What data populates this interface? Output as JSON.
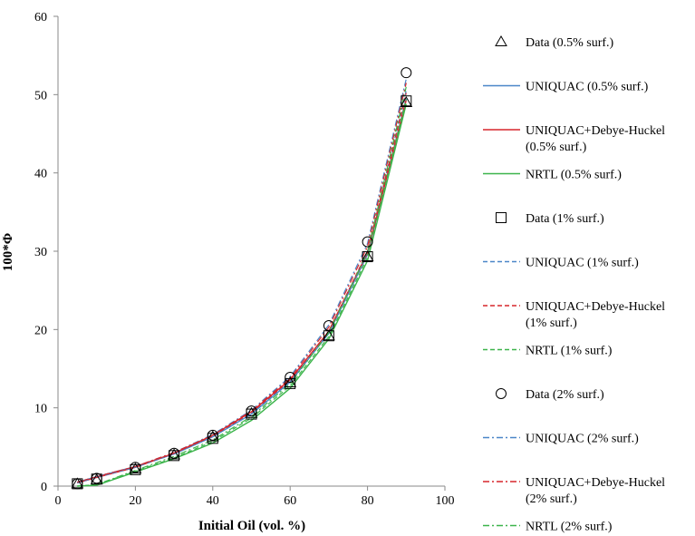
{
  "chart_data": {
    "type": "line",
    "title": "",
    "xlabel": "Initial Oil (vol. %)",
    "ylabel": "100*Φ",
    "xlim": [
      0,
      100
    ],
    "ylim": [
      0,
      60
    ],
    "x_ticks": [
      "0",
      "20",
      "40",
      "60",
      "80",
      "100"
    ],
    "y_ticks": [
      "0",
      "10",
      "20",
      "30",
      "40",
      "50",
      "60"
    ],
    "grid": false,
    "legend_position": "right",
    "x": [
      5,
      10,
      20,
      30,
      40,
      50,
      60,
      70,
      80,
      90
    ],
    "series": [
      {
        "name": "Data (0.5% surf.)",
        "kind": "marker",
        "marker": "triangle",
        "color": "#000000",
        "values": [
          0.3,
          0.8,
          2.2,
          4.0,
          6.3,
          9.3,
          13.2,
          19.2,
          29.3,
          49.0
        ]
      },
      {
        "name": "UNIQUAC (0.5% surf.)",
        "kind": "line",
        "dash": "solid",
        "color": "#4a86c8",
        "values": [
          0.5,
          1.2,
          2.5,
          4.1,
          6.3,
          9.2,
          13.3,
          19.5,
          29.6,
          49.5
        ]
      },
      {
        "name": "UNIQUAC+Debye-Huckel (0.5% surf.)",
        "kind": "line",
        "dash": "solid",
        "color": "#d7262b",
        "values": [
          0.4,
          1.1,
          2.4,
          4.2,
          6.5,
          9.5,
          13.6,
          19.8,
          29.8,
          49.3
        ]
      },
      {
        "name": "NRTL (0.5% surf.)",
        "kind": "line",
        "dash": "solid",
        "color": "#3cb44b",
        "values": [
          0.0,
          0.1,
          1.8,
          3.5,
          5.5,
          8.4,
          12.5,
          18.8,
          28.8,
          48.8
        ]
      },
      {
        "name": "Data (1% surf.)",
        "kind": "marker",
        "marker": "square",
        "color": "#000000",
        "values": [
          0.3,
          0.9,
          2.1,
          3.9,
          6.1,
          9.2,
          13.1,
          19.2,
          29.3,
          49.2
        ]
      },
      {
        "name": "UNIQUAC (1% surf.)",
        "kind": "line",
        "dash": "dashed",
        "color": "#4a86c8",
        "values": [
          0.4,
          1.1,
          2.4,
          4.1,
          6.3,
          9.3,
          13.4,
          19.7,
          29.9,
          50.5
        ]
      },
      {
        "name": "UNIQUAC+Debye-Huckel (1% surf.)",
        "kind": "line",
        "dash": "dashed",
        "color": "#d7262b",
        "values": [
          0.5,
          1.2,
          2.5,
          4.2,
          6.4,
          9.4,
          13.5,
          19.8,
          30.0,
          50.2
        ]
      },
      {
        "name": "NRTL (1% surf.)",
        "kind": "line",
        "dash": "dashed",
        "color": "#3cb44b",
        "values": [
          0.0,
          0.2,
          1.9,
          3.6,
          5.7,
          8.7,
          12.8,
          19.1,
          29.2,
          49.4
        ]
      },
      {
        "name": "Data (2% surf.)",
        "kind": "marker",
        "marker": "circle",
        "color": "#000000",
        "values": [
          0.3,
          1.0,
          2.4,
          4.2,
          6.5,
          9.6,
          13.9,
          20.5,
          31.2,
          52.8
        ]
      },
      {
        "name": "UNIQUAC (2% surf.)",
        "kind": "line",
        "dash": "dashdot",
        "color": "#4a86c8",
        "values": [
          0.5,
          1.2,
          2.5,
          4.3,
          6.6,
          9.7,
          14.0,
          20.6,
          31.0,
          52.0
        ]
      },
      {
        "name": "UNIQUAC+Debye-Huckel (2% surf.)",
        "kind": "line",
        "dash": "dashdot",
        "color": "#d7262b",
        "values": [
          0.5,
          1.2,
          2.5,
          4.3,
          6.5,
          9.6,
          13.8,
          20.3,
          30.6,
          51.5
        ]
      },
      {
        "name": "NRTL (2% surf.)",
        "kind": "line",
        "dash": "dashdot",
        "color": "#3cb44b",
        "values": [
          0.0,
          0.2,
          2.0,
          3.8,
          5.9,
          8.9,
          13.1,
          19.6,
          29.9,
          51.0
        ]
      }
    ],
    "legend": [
      {
        "lines": [
          "Data (0.5% surf.)"
        ],
        "series": 0
      },
      {
        "lines": [
          "UNIQUAC (0.5% surf.)"
        ],
        "series": 1
      },
      {
        "lines": [
          "UNIQUAC+Debye-Huckel",
          "(0.5% surf.)"
        ],
        "series": 2
      },
      {
        "lines": [
          "NRTL (0.5% surf.)"
        ],
        "series": 3
      },
      {
        "lines": [
          "Data (1% surf.)"
        ],
        "series": 4
      },
      {
        "lines": [
          "UNIQUAC (1% surf.)"
        ],
        "series": 5
      },
      {
        "lines": [
          "UNIQUAC+Debye-Huckel",
          "(1% surf.)"
        ],
        "series": 6
      },
      {
        "lines": [
          "NRTL (1% surf.)"
        ],
        "series": 7
      },
      {
        "lines": [
          "Data (2% surf.)"
        ],
        "series": 8
      },
      {
        "lines": [
          "UNIQUAC (2% surf.)"
        ],
        "series": 9
      },
      {
        "lines": [
          "UNIQUAC+Debye-Huckel",
          "(2% surf.)"
        ],
        "series": 10
      },
      {
        "lines": [
          "NRTL (2% surf.)"
        ],
        "series": 11
      }
    ]
  }
}
